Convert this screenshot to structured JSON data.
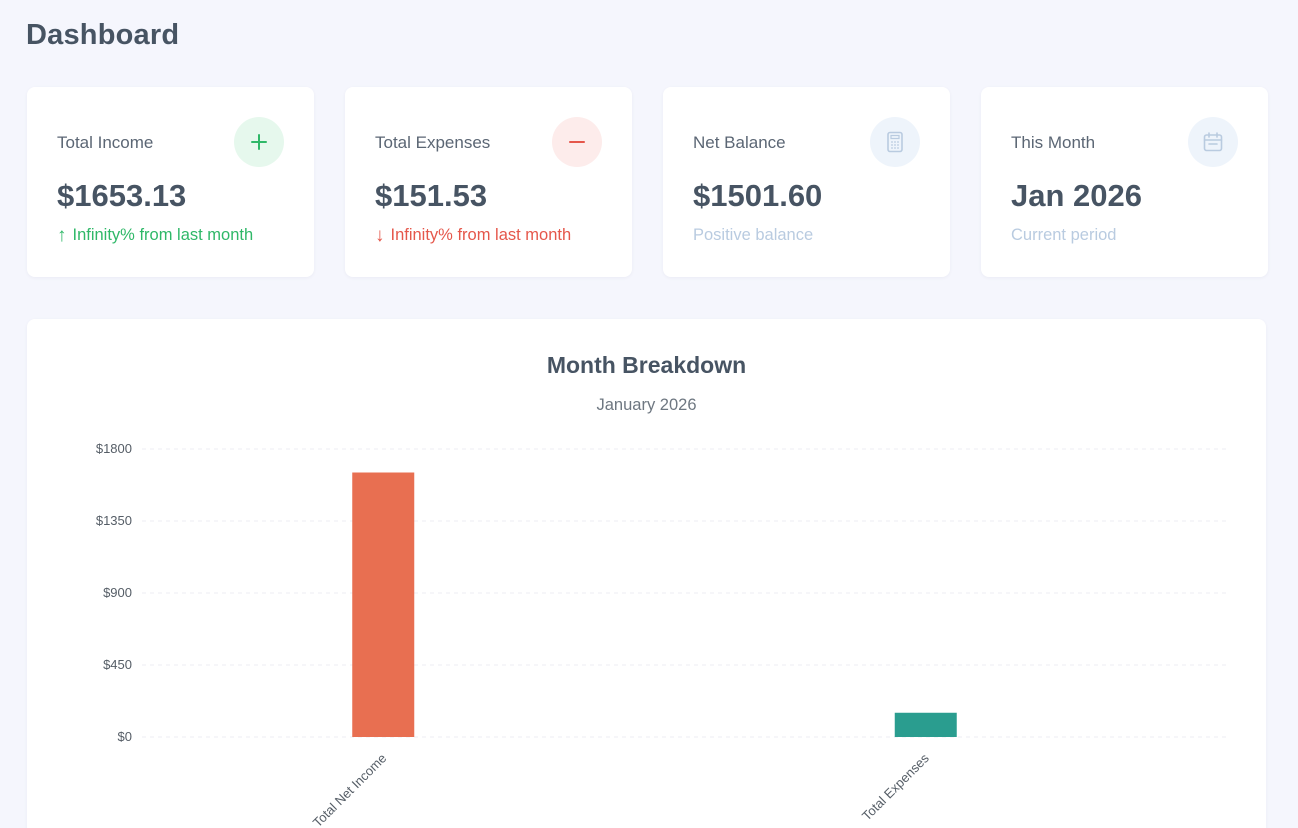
{
  "page": {
    "title": "Dashboard"
  },
  "cards": [
    {
      "label": "Total Income",
      "value": "$1653.13",
      "sub": "Infinity% from last month",
      "sub_arrow": "↑",
      "icon": "plus-icon",
      "tone": "green"
    },
    {
      "label": "Total Expenses",
      "value": "$151.53",
      "sub": "Infinity% from last month",
      "sub_arrow": "↓",
      "icon": "minus-icon",
      "tone": "red"
    },
    {
      "label": "Net Balance",
      "value": "$1501.60",
      "sub": "Positive balance",
      "icon": "calculator-icon",
      "tone": "blue"
    },
    {
      "label": "This Month",
      "value": "Jan 2026",
      "sub": "Current period",
      "icon": "calendar-icon",
      "tone": "blue"
    }
  ],
  "colors": {
    "green": "#2fb868",
    "red": "#e5574b",
    "muted": "#b9cbe0",
    "bar_income": "#e86f51",
    "bar_expenses": "#2a9d8f"
  },
  "chart_data": {
    "type": "bar",
    "title": "Month Breakdown",
    "subtitle": "January 2026",
    "categories": [
      "Total Net Income",
      "Total Expenses"
    ],
    "values": [
      1653.13,
      151.53
    ],
    "bar_colors": [
      "#e86f51",
      "#2a9d8f"
    ],
    "ylim": [
      0,
      1800
    ],
    "yticks": [
      0,
      450,
      900,
      1350,
      1800
    ],
    "ytick_labels": [
      "$0",
      "$450",
      "$900",
      "$1350",
      "$1800"
    ],
    "grid": true,
    "legend": "none"
  }
}
